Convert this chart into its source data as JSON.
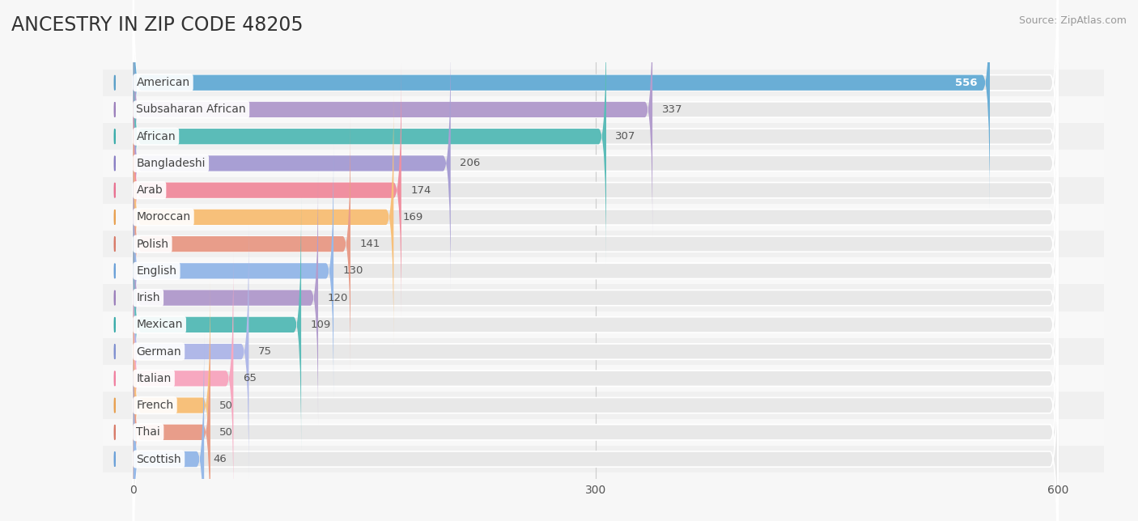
{
  "title": "ANCESTRY IN ZIP CODE 48205",
  "source": "Source: ZipAtlas.com",
  "categories": [
    "American",
    "Subsaharan African",
    "African",
    "Bangladeshi",
    "Arab",
    "Moroccan",
    "Polish",
    "English",
    "Irish",
    "Mexican",
    "German",
    "Italian",
    "French",
    "Thai",
    "Scottish"
  ],
  "values": [
    556,
    337,
    307,
    206,
    174,
    169,
    141,
    130,
    120,
    109,
    75,
    65,
    50,
    50,
    46
  ],
  "bar_colors": [
    "#6aaed6",
    "#b39dcd",
    "#5bbcb8",
    "#a89fd4",
    "#f08fa0",
    "#f7c07a",
    "#e89d8a",
    "#97b9e8",
    "#b39dcd",
    "#5bbcb8",
    "#b0b8e8",
    "#f7a8c0",
    "#f7c07a",
    "#e89d8a",
    "#97b9e8"
  ],
  "circle_colors": [
    "#5a9fc8",
    "#9b7fbb",
    "#3aacaa",
    "#8a7fc4",
    "#e87090",
    "#e8a050",
    "#d87a68",
    "#6aa0d8",
    "#9b7fbb",
    "#3aacaa",
    "#8090d0",
    "#f080a0",
    "#e8a050",
    "#d87a68",
    "#6aa0d8"
  ],
  "background_color": "#f7f7f7",
  "bar_bg_color": "#e8e8e8",
  "row_bg_colors": [
    "#f0f0f0",
    "#f8f8f8"
  ],
  "xlim": [
    0,
    600
  ],
  "xticks": [
    0,
    300,
    600
  ],
  "title_fontsize": 17,
  "label_fontsize": 10,
  "value_fontsize": 9.5,
  "bar_height": 0.58
}
